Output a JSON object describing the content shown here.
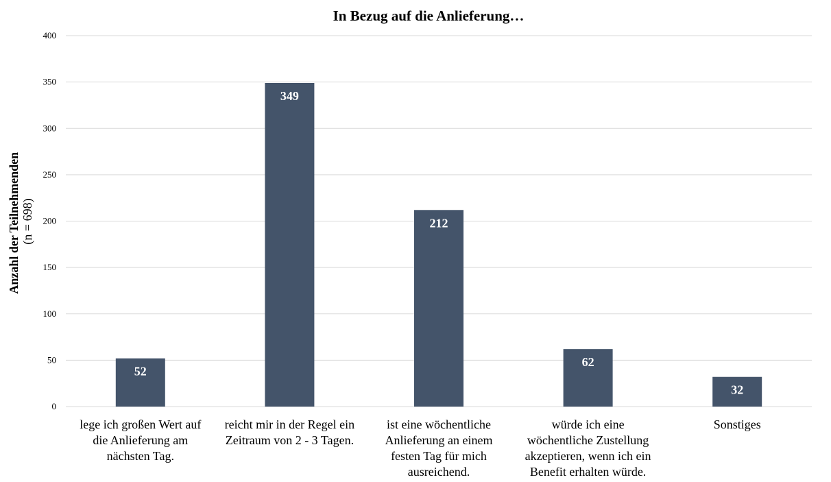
{
  "chart_data": {
    "type": "bar",
    "title": "In Bezug auf die Anlieferung…",
    "ylabel": "Anzahl der Teilnehmenden",
    "ylabel_sub": "(n = 698)",
    "xlabel": "",
    "ylim": [
      0,
      400
    ],
    "yticks": [
      0,
      50,
      100,
      150,
      200,
      250,
      300,
      350,
      400
    ],
    "grid": true,
    "bar_color": "#44546a",
    "categories": [
      [
        "lege ich großen Wert auf",
        "die Anlieferung am",
        "nächsten Tag."
      ],
      [
        "reicht mir in der Regel ein",
        "Zeitraum von 2 - 3 Tagen."
      ],
      [
        "ist eine wöchentliche",
        "Anlieferung an einem",
        "festen Tag für mich",
        "ausreichend."
      ],
      [
        "würde ich eine",
        "wöchentliche Zustellung",
        "akzeptieren, wenn ich ein",
        "Benefit erhalten würde."
      ],
      [
        "Sonstiges"
      ]
    ],
    "values": [
      52,
      349,
      212,
      62,
      32
    ]
  }
}
